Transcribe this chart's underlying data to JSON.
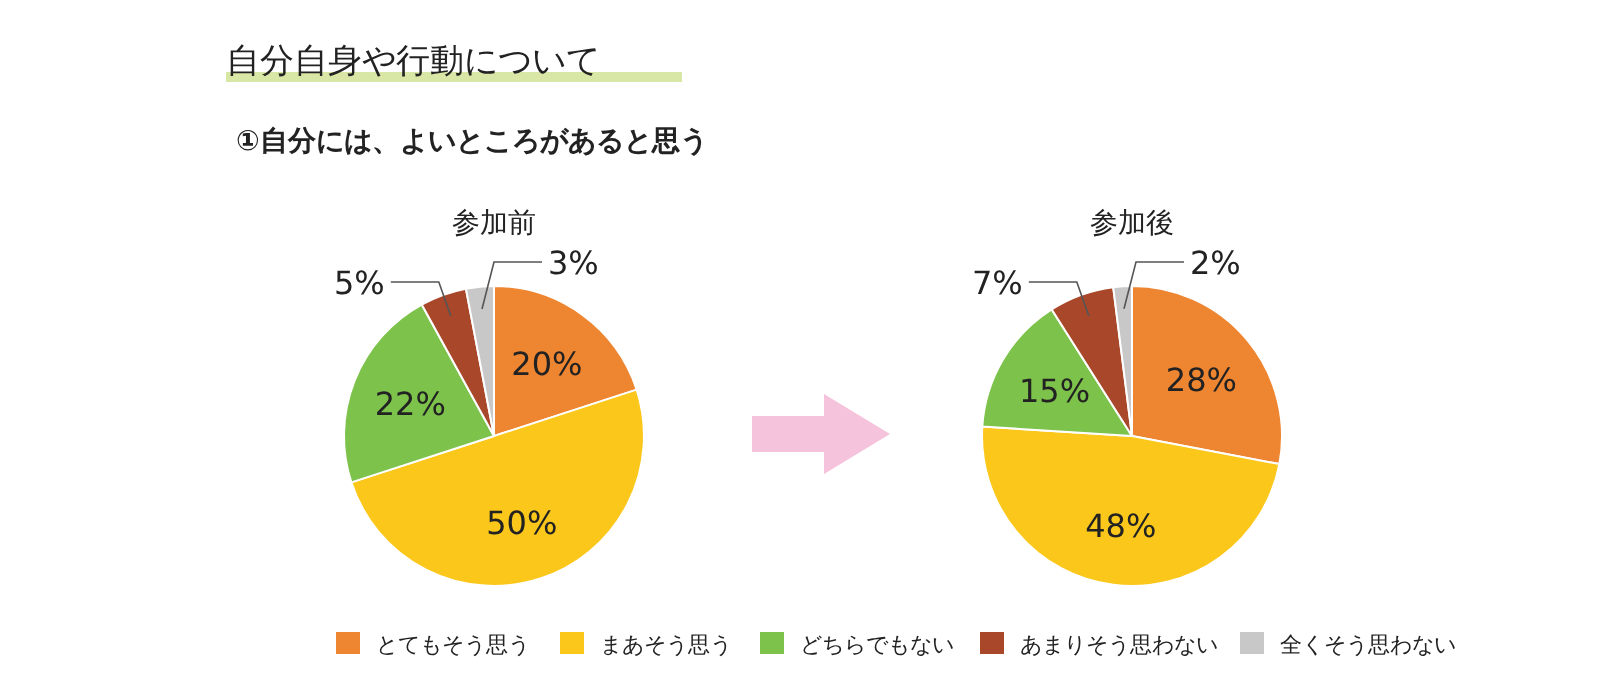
{
  "chart_data": [
    {
      "type": "pie",
      "title": "参加前",
      "annotations": [
        "自分自身や行動について",
        "①自分には、よいところがあると思う"
      ],
      "categories": [
        "とてもそう思う",
        "まあそう思う",
        "どちらでもない",
        "あまりそう思わない",
        "全くそう思わない"
      ],
      "values": [
        20,
        50,
        22,
        5,
        3
      ],
      "value_labels": [
        "20%",
        "50%",
        "22%",
        "5%",
        "3%"
      ],
      "colors": [
        "#ee8530",
        "#fbc71b",
        "#7dc24b",
        "#a9472a",
        "#c8c8c8"
      ],
      "legend": "bottom"
    },
    {
      "type": "pie",
      "title": "参加後",
      "categories": [
        null,
        null,
        null,
        null,
        null
      ],
      "values": [
        28,
        48,
        15,
        7,
        2
      ],
      "value_labels": [
        "28%",
        "48%",
        "15%",
        "7%",
        "2%"
      ],
      "colors": [
        "#ee8530",
        "#fbc71b",
        "#7dc24b",
        "#a9472a",
        "#c8c8c8"
      ]
    }
  ]
}
